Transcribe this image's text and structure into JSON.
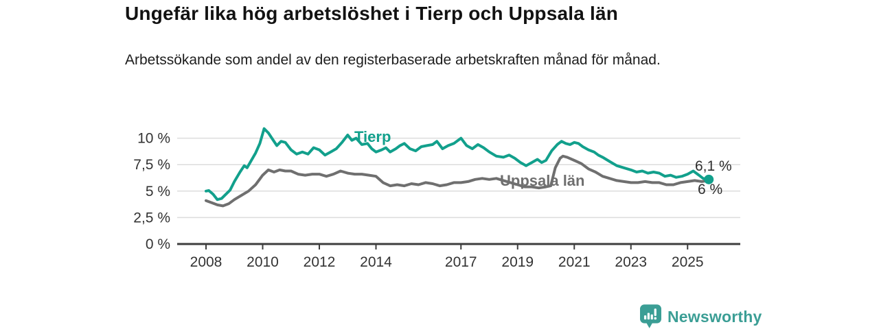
{
  "title": "Ungefär lika hög arbetslöshet i Tierp och Uppsala län",
  "subtitle": "Arbetssökande som andel av den registerbaserade arbetskraften månad för månad.",
  "footer": {
    "brand": "Newsworthy",
    "logo_icon": "bar-chart-speech-bubble-icon",
    "brand_color": "#3b9e95"
  },
  "chart_data": {
    "type": "line",
    "title": "Ungefär lika hög arbetslöshet i Tierp och Uppsala län",
    "subtitle": "Arbetssökande som andel av den registerbaserade arbetskraften månad för månad.",
    "xlabel": "",
    "ylabel": "",
    "x_unit": "year (decimal = monthly values)",
    "y_unit": "percent",
    "ylim": [
      0,
      11.5
    ],
    "xlim": [
      2007.0,
      2026.9
    ],
    "grid": "horizontal",
    "legend_position": "inline-labels",
    "axis_color": "#3d3d3d",
    "grid_color": "#dcdcdc",
    "tick_label_color": "#333333",
    "yticks": [
      {
        "value": 0,
        "label": "0 %"
      },
      {
        "value": 2.5,
        "label": "2,5 %"
      },
      {
        "value": 5,
        "label": "5 %"
      },
      {
        "value": 7.5,
        "label": "7,5 %"
      },
      {
        "value": 10,
        "label": "10 %"
      }
    ],
    "xticks": [
      {
        "value": 2008,
        "label": "2008"
      },
      {
        "value": 2010,
        "label": "2010"
      },
      {
        "value": 2012,
        "label": "2012"
      },
      {
        "value": 2014,
        "label": "2014"
      },
      {
        "value": 2017,
        "label": "2017"
      },
      {
        "value": 2019,
        "label": "2019"
      },
      {
        "value": 2021,
        "label": "2021"
      },
      {
        "value": 2023,
        "label": "2023"
      },
      {
        "value": 2025,
        "label": "2025"
      }
    ],
    "series": [
      {
        "name": "Uppsala län",
        "color": "#6f6f6f",
        "end_label": "6 %",
        "end_value": 6.0,
        "end_dot": false,
        "points": [
          [
            2008.0,
            4.1
          ],
          [
            2008.2,
            3.9
          ],
          [
            2008.4,
            3.7
          ],
          [
            2008.6,
            3.6
          ],
          [
            2008.8,
            3.8
          ],
          [
            2009.0,
            4.2
          ],
          [
            2009.25,
            4.6
          ],
          [
            2009.5,
            5.0
          ],
          [
            2009.75,
            5.6
          ],
          [
            2010.0,
            6.5
          ],
          [
            2010.2,
            7.0
          ],
          [
            2010.4,
            6.8
          ],
          [
            2010.6,
            7.0
          ],
          [
            2010.8,
            6.9
          ],
          [
            2011.0,
            6.9
          ],
          [
            2011.25,
            6.6
          ],
          [
            2011.5,
            6.5
          ],
          [
            2011.75,
            6.6
          ],
          [
            2012.0,
            6.6
          ],
          [
            2012.25,
            6.4
          ],
          [
            2012.5,
            6.6
          ],
          [
            2012.75,
            6.9
          ],
          [
            2013.0,
            6.7
          ],
          [
            2013.25,
            6.6
          ],
          [
            2013.5,
            6.6
          ],
          [
            2013.75,
            6.5
          ],
          [
            2014.0,
            6.4
          ],
          [
            2014.25,
            5.8
          ],
          [
            2014.5,
            5.5
          ],
          [
            2014.75,
            5.6
          ],
          [
            2015.0,
            5.5
          ],
          [
            2015.25,
            5.7
          ],
          [
            2015.5,
            5.6
          ],
          [
            2015.75,
            5.8
          ],
          [
            2016.0,
            5.7
          ],
          [
            2016.25,
            5.5
          ],
          [
            2016.5,
            5.6
          ],
          [
            2016.75,
            5.8
          ],
          [
            2017.0,
            5.8
          ],
          [
            2017.25,
            5.9
          ],
          [
            2017.5,
            6.1
          ],
          [
            2017.75,
            6.2
          ],
          [
            2018.0,
            6.1
          ],
          [
            2018.25,
            6.2
          ],
          [
            2018.5,
            6.0
          ],
          [
            2018.75,
            5.8
          ],
          [
            2019.0,
            5.6
          ],
          [
            2019.25,
            5.4
          ],
          [
            2019.5,
            5.4
          ],
          [
            2019.75,
            5.3
          ],
          [
            2020.0,
            5.4
          ],
          [
            2020.17,
            5.5
          ],
          [
            2020.33,
            7.2
          ],
          [
            2020.5,
            8.1
          ],
          [
            2020.6,
            8.3
          ],
          [
            2020.75,
            8.2
          ],
          [
            2021.0,
            7.9
          ],
          [
            2021.25,
            7.6
          ],
          [
            2021.5,
            7.1
          ],
          [
            2021.75,
            6.8
          ],
          [
            2022.0,
            6.4
          ],
          [
            2022.25,
            6.2
          ],
          [
            2022.5,
            6.0
          ],
          [
            2022.75,
            5.9
          ],
          [
            2023.0,
            5.8
          ],
          [
            2023.25,
            5.8
          ],
          [
            2023.5,
            5.9
          ],
          [
            2023.75,
            5.8
          ],
          [
            2024.0,
            5.8
          ],
          [
            2024.25,
            5.6
          ],
          [
            2024.5,
            5.6
          ],
          [
            2024.75,
            5.8
          ],
          [
            2025.0,
            5.9
          ],
          [
            2025.25,
            6.0
          ],
          [
            2025.5,
            5.9
          ],
          [
            2025.75,
            6.0
          ]
        ]
      },
      {
        "name": "Tierp",
        "color": "#12a08c",
        "end_label": "6,1 %",
        "end_value": 6.1,
        "end_dot": true,
        "points": [
          [
            2008.0,
            5.0
          ],
          [
            2008.1,
            5.05
          ],
          [
            2008.25,
            4.7
          ],
          [
            2008.4,
            4.2
          ],
          [
            2008.55,
            4.3
          ],
          [
            2008.7,
            4.7
          ],
          [
            2008.85,
            5.1
          ],
          [
            2009.0,
            5.9
          ],
          [
            2009.2,
            6.8
          ],
          [
            2009.35,
            7.4
          ],
          [
            2009.45,
            7.2
          ],
          [
            2009.6,
            7.9
          ],
          [
            2009.75,
            8.6
          ],
          [
            2009.9,
            9.5
          ],
          [
            2010.05,
            10.9
          ],
          [
            2010.2,
            10.5
          ],
          [
            2010.35,
            9.9
          ],
          [
            2010.5,
            9.3
          ],
          [
            2010.65,
            9.7
          ],
          [
            2010.8,
            9.6
          ],
          [
            2011.0,
            8.9
          ],
          [
            2011.2,
            8.5
          ],
          [
            2011.4,
            8.7
          ],
          [
            2011.6,
            8.5
          ],
          [
            2011.8,
            9.1
          ],
          [
            2012.0,
            8.9
          ],
          [
            2012.2,
            8.4
          ],
          [
            2012.4,
            8.7
          ],
          [
            2012.6,
            9.0
          ],
          [
            2012.8,
            9.6
          ],
          [
            2013.0,
            10.3
          ],
          [
            2013.15,
            9.8
          ],
          [
            2013.3,
            10.0
          ],
          [
            2013.5,
            9.4
          ],
          [
            2013.7,
            9.5
          ],
          [
            2013.85,
            9.0
          ],
          [
            2014.0,
            8.7
          ],
          [
            2014.2,
            8.9
          ],
          [
            2014.35,
            9.1
          ],
          [
            2014.5,
            8.7
          ],
          [
            2014.7,
            9.0
          ],
          [
            2014.85,
            9.3
          ],
          [
            2015.0,
            9.5
          ],
          [
            2015.2,
            9.0
          ],
          [
            2015.4,
            8.8
          ],
          [
            2015.6,
            9.2
          ],
          [
            2015.8,
            9.3
          ],
          [
            2016.0,
            9.4
          ],
          [
            2016.15,
            9.7
          ],
          [
            2016.35,
            9.0
          ],
          [
            2016.55,
            9.3
          ],
          [
            2016.75,
            9.5
          ],
          [
            2017.0,
            10.0
          ],
          [
            2017.2,
            9.3
          ],
          [
            2017.4,
            9.0
          ],
          [
            2017.6,
            9.4
          ],
          [
            2017.8,
            9.1
          ],
          [
            2018.0,
            8.7
          ],
          [
            2018.25,
            8.3
          ],
          [
            2018.5,
            8.2
          ],
          [
            2018.7,
            8.4
          ],
          [
            2018.9,
            8.1
          ],
          [
            2019.1,
            7.7
          ],
          [
            2019.3,
            7.4
          ],
          [
            2019.5,
            7.7
          ],
          [
            2019.7,
            8.0
          ],
          [
            2019.85,
            7.7
          ],
          [
            2020.0,
            7.9
          ],
          [
            2020.2,
            8.8
          ],
          [
            2020.4,
            9.4
          ],
          [
            2020.55,
            9.7
          ],
          [
            2020.7,
            9.5
          ],
          [
            2020.85,
            9.4
          ],
          [
            2021.0,
            9.6
          ],
          [
            2021.15,
            9.5
          ],
          [
            2021.3,
            9.2
          ],
          [
            2021.5,
            8.9
          ],
          [
            2021.7,
            8.7
          ],
          [
            2021.85,
            8.4
          ],
          [
            2022.0,
            8.2
          ],
          [
            2022.25,
            7.8
          ],
          [
            2022.5,
            7.4
          ],
          [
            2022.75,
            7.2
          ],
          [
            2023.0,
            7.0
          ],
          [
            2023.2,
            6.8
          ],
          [
            2023.4,
            6.9
          ],
          [
            2023.6,
            6.7
          ],
          [
            2023.8,
            6.8
          ],
          [
            2024.0,
            6.7
          ],
          [
            2024.2,
            6.4
          ],
          [
            2024.4,
            6.5
          ],
          [
            2024.6,
            6.3
          ],
          [
            2024.8,
            6.4
          ],
          [
            2025.0,
            6.6
          ],
          [
            2025.2,
            6.9
          ],
          [
            2025.4,
            6.5
          ],
          [
            2025.55,
            6.2
          ],
          [
            2025.75,
            6.1
          ]
        ]
      }
    ]
  }
}
